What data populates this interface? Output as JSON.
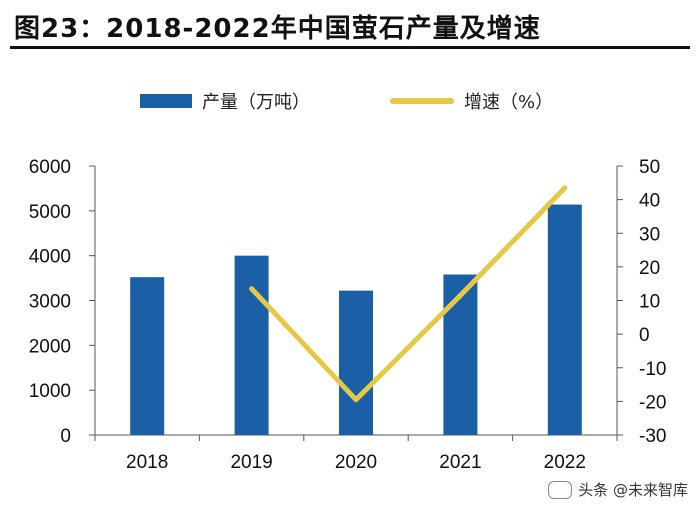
{
  "header": {
    "title": "图23：2018-2022年中国萤石产量及增速"
  },
  "legend": {
    "items": [
      {
        "label": "产量（万吨）",
        "kind": "bar",
        "color": "#1b5fa6"
      },
      {
        "label": "增速（%）",
        "kind": "line",
        "color": "#e7c845"
      }
    ]
  },
  "watermark": {
    "text": "头条 @未来智库"
  },
  "chart_data": {
    "type": "bar",
    "categories": [
      "2018",
      "2019",
      "2020",
      "2021",
      "2022"
    ],
    "series": [
      {
        "name": "产量（万吨）",
        "type": "bar",
        "axis": "left",
        "values": [
          3520,
          4000,
          3220,
          3580,
          5140
        ]
      },
      {
        "name": "增速（%）",
        "type": "line",
        "axis": "right",
        "values": [
          null,
          13.5,
          -19.5,
          11.5,
          43.5
        ]
      }
    ],
    "y_left": {
      "min": 0,
      "max": 6000,
      "ticks": [
        0,
        1000,
        2000,
        3000,
        4000,
        5000,
        6000
      ]
    },
    "y_right": {
      "min": -30,
      "max": 50,
      "ticks": [
        -30,
        -20,
        -10,
        0,
        10,
        20,
        30,
        40,
        50
      ]
    },
    "grid": false,
    "legend_position": "top",
    "colors": {
      "bar": "#1b5fa6",
      "line": "#e7c845"
    }
  }
}
